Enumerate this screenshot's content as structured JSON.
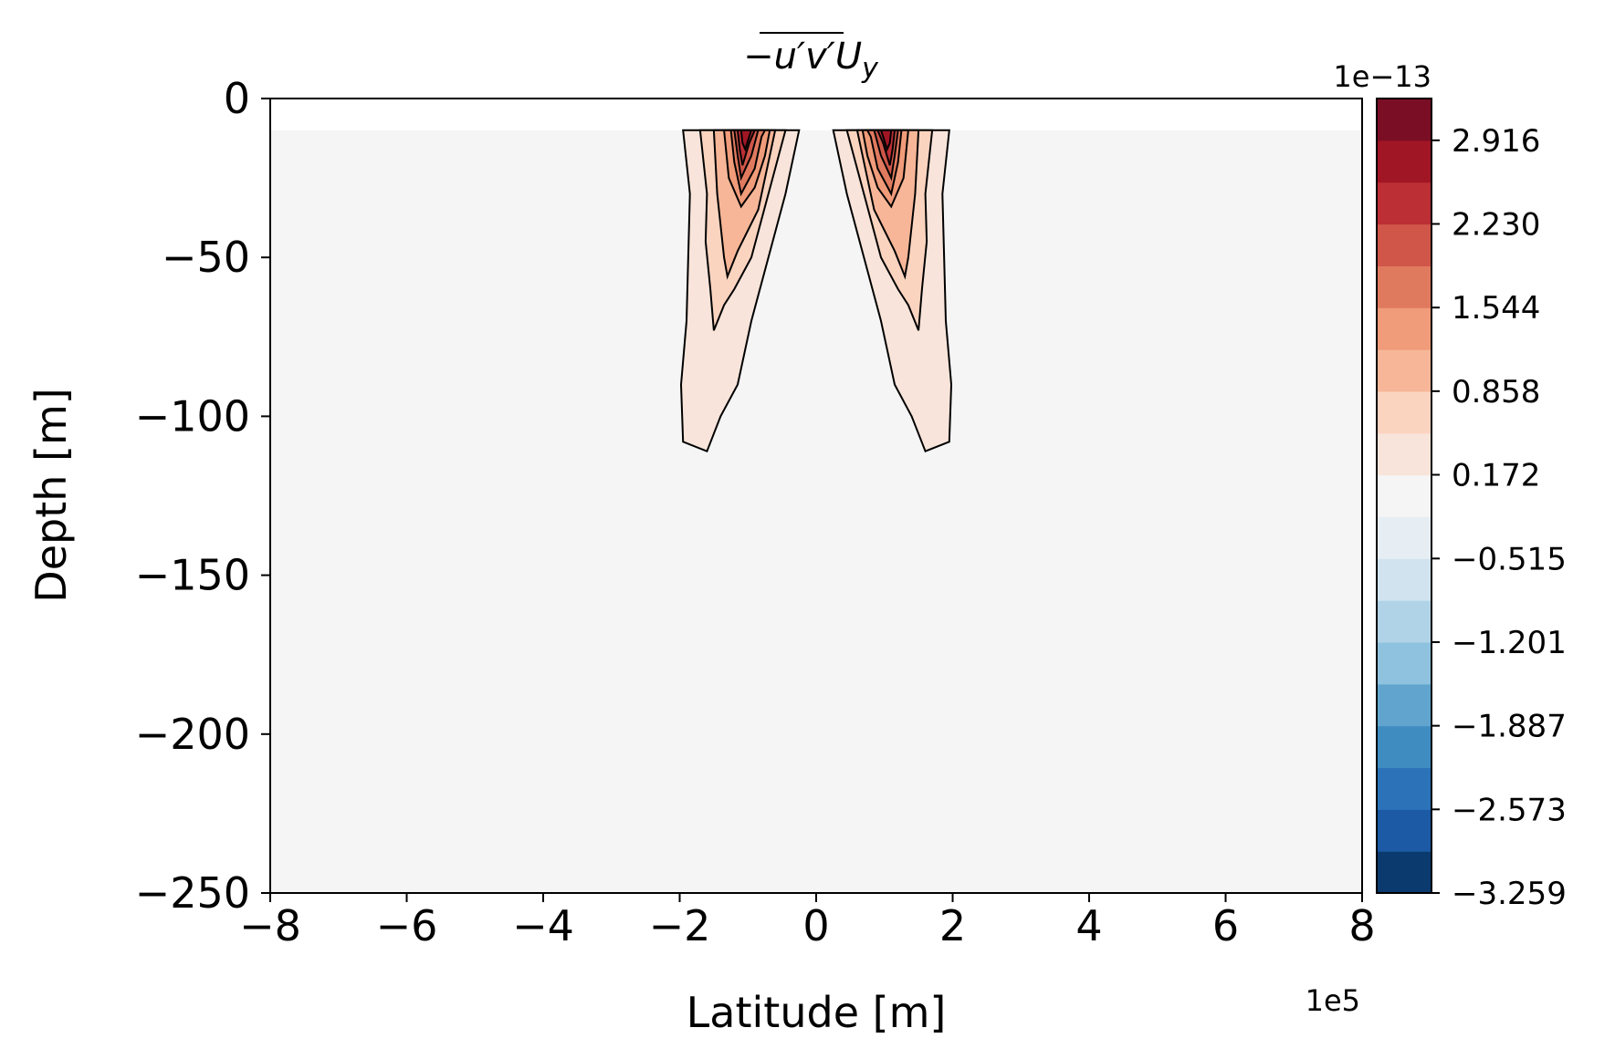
{
  "chart_data": {
    "type": "contour",
    "title": "−u′v′U",
    "title_subscript": "y",
    "xlabel": "Latitude [m]",
    "ylabel": "Depth [m]",
    "xlim": [
      -8,
      8
    ],
    "ylim": [
      -250,
      0
    ],
    "x_multiplier": "1e5",
    "xticks": [
      -8,
      -6,
      -4,
      -2,
      0,
      2,
      4,
      6,
      8
    ],
    "xtick_labels": [
      "−8",
      "−6",
      "−4",
      "−2",
      "0",
      "2",
      "4",
      "6",
      "8"
    ],
    "yticks": [
      0,
      -50,
      -100,
      -150,
      -200,
      -250
    ],
    "ytick_labels": [
      "0",
      "−50",
      "−100",
      "−150",
      "−200",
      "−250"
    ],
    "background_color": "#f5f5f5",
    "colorbar": {
      "multiplier": "1e−13",
      "vmin": -3.259,
      "vmax": 3.259,
      "n_levels": 19,
      "tick_values": [
        2.916,
        2.23,
        1.544,
        0.858,
        0.172,
        -0.515,
        -1.201,
        -1.887,
        -2.573,
        -3.259
      ],
      "tick_labels": [
        "2.916",
        "2.230",
        "1.544",
        "0.858",
        "0.172",
        "−0.515",
        "−1.201",
        "−1.887",
        "−2.573",
        "−3.259"
      ],
      "colors": [
        "#0b3a6e",
        "#1c5aa5",
        "#2c72b8",
        "#3f8cc1",
        "#61a5cf",
        "#8ec2de",
        "#b0d3e7",
        "#d0e3ef",
        "#e6eef4",
        "#f5f5f5",
        "#f8e4da",
        "#fbd4c0",
        "#f7b698",
        "#f09b79",
        "#e07a5f",
        "#cf5649",
        "#bb2f35",
        "#a11625",
        "#7a0e25"
      ]
    },
    "contours": [
      {
        "level_index": 10,
        "points": [
          [
            -1.95,
            -10
          ],
          [
            -1.85,
            -30
          ],
          [
            -1.9,
            -70
          ],
          [
            -1.98,
            -90
          ],
          [
            -1.95,
            -108
          ],
          [
            -1.6,
            -111
          ],
          [
            -1.4,
            -100
          ],
          [
            -1.15,
            -90
          ],
          [
            -0.95,
            -70
          ],
          [
            -0.45,
            -30
          ],
          [
            -0.25,
            -10
          ]
        ]
      },
      {
        "level_index": 11,
        "points": [
          [
            -1.7,
            -10
          ],
          [
            -1.6,
            -30
          ],
          [
            -1.62,
            -45
          ],
          [
            -1.55,
            -60
          ],
          [
            -1.5,
            -73
          ],
          [
            -1.35,
            -65
          ],
          [
            -1.2,
            -60
          ],
          [
            -0.95,
            -50
          ],
          [
            -0.7,
            -30
          ],
          [
            -0.45,
            -10
          ]
        ]
      },
      {
        "level_index": 12,
        "points": [
          [
            -1.5,
            -10
          ],
          [
            -1.45,
            -30
          ],
          [
            -1.35,
            -50
          ],
          [
            -1.3,
            -56
          ],
          [
            -1.15,
            -48
          ],
          [
            -0.85,
            -35
          ],
          [
            -0.7,
            -20
          ],
          [
            -0.6,
            -10
          ]
        ]
      },
      {
        "level_index": 13,
        "points": [
          [
            -1.35,
            -10
          ],
          [
            -1.28,
            -25
          ],
          [
            -1.1,
            -34
          ],
          [
            -0.9,
            -28
          ],
          [
            -0.75,
            -18
          ],
          [
            -0.68,
            -10
          ]
        ]
      },
      {
        "level_index": 14,
        "points": [
          [
            -1.25,
            -10
          ],
          [
            -1.2,
            -20
          ],
          [
            -1.1,
            -30
          ],
          [
            -0.9,
            -22
          ],
          [
            -0.8,
            -12
          ],
          [
            -0.75,
            -10
          ]
        ]
      },
      {
        "level_index": 15,
        "points": [
          [
            -1.2,
            -10
          ],
          [
            -1.15,
            -18
          ],
          [
            -1.1,
            -25
          ],
          [
            -0.95,
            -18
          ],
          [
            -0.85,
            -10
          ]
        ]
      },
      {
        "level_index": 16,
        "points": [
          [
            -1.15,
            -10
          ],
          [
            -1.12,
            -16
          ],
          [
            -1.08,
            -21
          ],
          [
            -0.98,
            -14
          ],
          [
            -0.9,
            -10
          ]
        ]
      },
      {
        "level_index": 17,
        "points": [
          [
            -1.1,
            -10
          ],
          [
            -1.08,
            -14
          ],
          [
            -1.04,
            -16
          ],
          [
            -0.98,
            -12
          ],
          [
            -0.95,
            -10
          ]
        ]
      },
      {
        "level_index": 10,
        "points": [
          [
            1.95,
            -10
          ],
          [
            1.85,
            -30
          ],
          [
            1.9,
            -70
          ],
          [
            1.98,
            -90
          ],
          [
            1.95,
            -108
          ],
          [
            1.6,
            -111
          ],
          [
            1.4,
            -100
          ],
          [
            1.15,
            -90
          ],
          [
            0.95,
            -70
          ],
          [
            0.45,
            -30
          ],
          [
            0.25,
            -10
          ]
        ]
      },
      {
        "level_index": 11,
        "points": [
          [
            1.7,
            -10
          ],
          [
            1.6,
            -30
          ],
          [
            1.62,
            -45
          ],
          [
            1.55,
            -60
          ],
          [
            1.5,
            -73
          ],
          [
            1.35,
            -65
          ],
          [
            1.2,
            -60
          ],
          [
            0.95,
            -50
          ],
          [
            0.7,
            -30
          ],
          [
            0.45,
            -10
          ]
        ]
      },
      {
        "level_index": 12,
        "points": [
          [
            1.5,
            -10
          ],
          [
            1.45,
            -30
          ],
          [
            1.35,
            -50
          ],
          [
            1.3,
            -56
          ],
          [
            1.15,
            -48
          ],
          [
            0.85,
            -35
          ],
          [
            0.7,
            -20
          ],
          [
            0.6,
            -10
          ]
        ]
      },
      {
        "level_index": 13,
        "points": [
          [
            1.35,
            -10
          ],
          [
            1.28,
            -25
          ],
          [
            1.1,
            -34
          ],
          [
            0.9,
            -28
          ],
          [
            0.75,
            -18
          ],
          [
            0.68,
            -10
          ]
        ]
      },
      {
        "level_index": 14,
        "points": [
          [
            1.25,
            -10
          ],
          [
            1.2,
            -20
          ],
          [
            1.1,
            -30
          ],
          [
            0.9,
            -22
          ],
          [
            0.8,
            -12
          ],
          [
            0.75,
            -10
          ]
        ]
      },
      {
        "level_index": 15,
        "points": [
          [
            1.2,
            -10
          ],
          [
            1.15,
            -18
          ],
          [
            1.1,
            -25
          ],
          [
            0.95,
            -18
          ],
          [
            0.85,
            -10
          ]
        ]
      },
      {
        "level_index": 16,
        "points": [
          [
            1.15,
            -10
          ],
          [
            1.12,
            -16
          ],
          [
            1.08,
            -21
          ],
          [
            0.98,
            -14
          ],
          [
            0.9,
            -10
          ]
        ]
      },
      {
        "level_index": 17,
        "points": [
          [
            1.1,
            -10
          ],
          [
            1.08,
            -14
          ],
          [
            1.04,
            -16
          ],
          [
            0.98,
            -12
          ],
          [
            0.95,
            -10
          ]
        ]
      }
    ]
  }
}
